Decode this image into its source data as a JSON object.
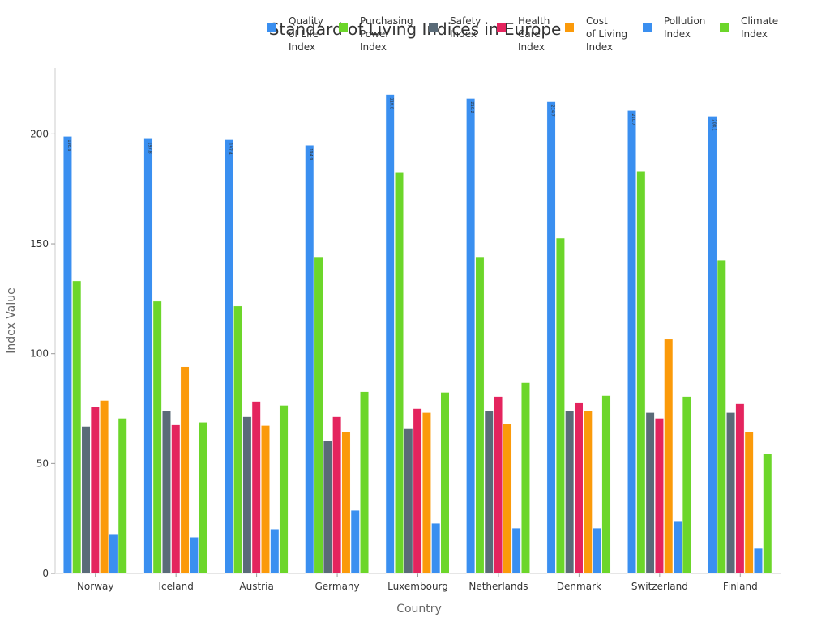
{
  "chart_data": {
    "type": "bar",
    "title": "Standard of Living Indices in Europe",
    "x_label": "Country",
    "y_label": "Index Value",
    "categories": [
      "Norway",
      "Iceland",
      "Austria",
      "Germany",
      "Luxembourg",
      "Netherlands",
      "Denmark",
      "Switzerland",
      "Finland"
    ],
    "series": [
      {
        "name": "Quality\nof Life\nIndex",
        "color": "#3a8ff0",
        "values": [
          198.9,
          197.8,
          197.4,
          194.9,
          218.0,
          216.2,
          214.7,
          210.7,
          208.1
        ],
        "value_labels": [
          "198.9",
          "197.8",
          "197.4",
          "194.9",
          "218.0",
          "216.2",
          "214.7",
          "210.7",
          "208.1"
        ]
      },
      {
        "name": "Purchasing\nPower\nIndex",
        "color": "#6cd62a",
        "values": [
          133.1,
          123.9,
          121.7,
          144.1,
          182.7,
          144.1,
          152.6,
          183.1,
          142.6
        ]
      },
      {
        "name": "Safety\nIndex",
        "color": "#5a6b78",
        "values": [
          66.9,
          73.9,
          71.3,
          60.3,
          65.8,
          73.9,
          73.9,
          73.2,
          73.2
        ]
      },
      {
        "name": "Health\nCare\nIndex",
        "color": "#e4245e",
        "values": [
          75.7,
          67.6,
          78.3,
          71.3,
          75.0,
          80.5,
          77.9,
          70.6,
          77.2
        ]
      },
      {
        "name": "Cost\nof Living\nIndex",
        "color": "#fb9a0a",
        "values": [
          78.7,
          94.1,
          67.3,
          64.3,
          73.2,
          68.0,
          73.9,
          106.6,
          64.3
        ]
      },
      {
        "name": "Pollution\nIndex",
        "color": "#3a8ff0",
        "values": [
          18.0,
          16.5,
          20.2,
          28.7,
          22.8,
          20.6,
          20.6,
          23.9,
          11.4
        ]
      },
      {
        "name": "Climate\nIndex",
        "color": "#6cd62a",
        "values": [
          70.6,
          68.8,
          76.5,
          82.7,
          82.4,
          86.8,
          80.9,
          80.5,
          54.4
        ]
      }
    ],
    "ylim": [
      0,
      230
    ],
    "yticks": [
      0,
      50,
      100,
      150,
      200
    ],
    "grid": false,
    "legend": "top"
  }
}
